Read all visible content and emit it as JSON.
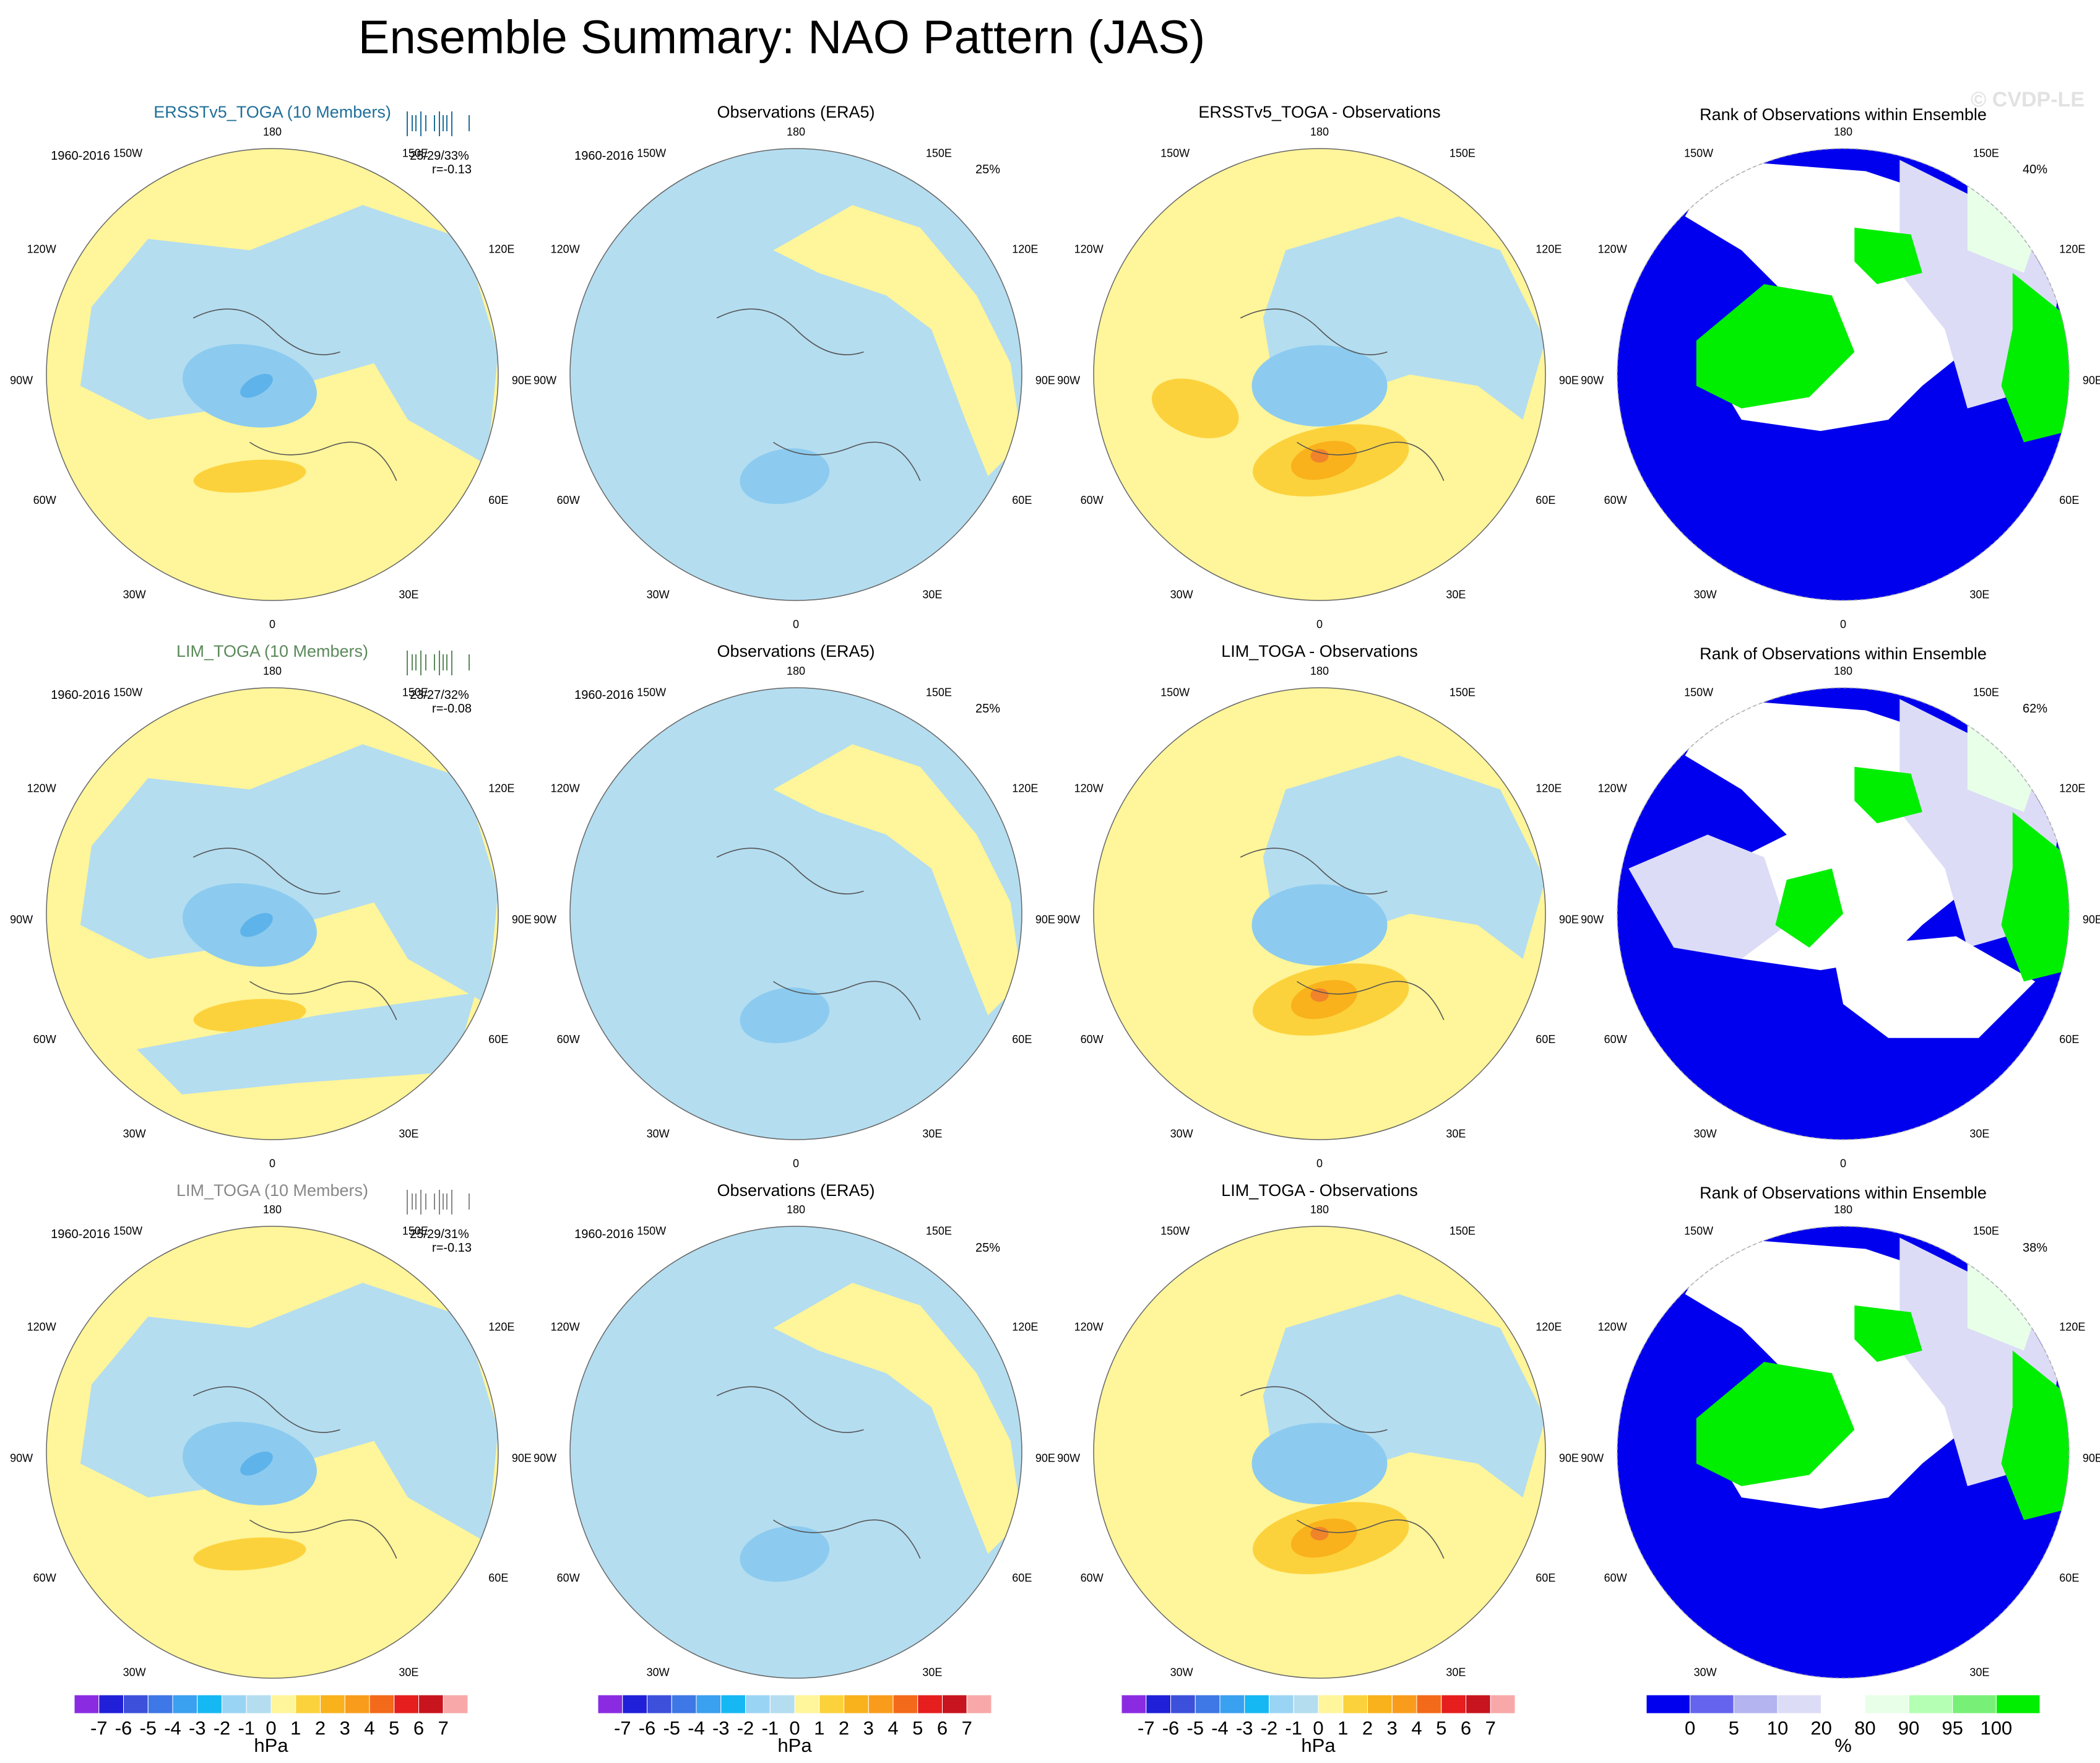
{
  "title": "Ensemble Summary: NAO Pattern (JAS)",
  "watermark": "© CVDP-LE",
  "colors": {
    "yellow": "#fff59a",
    "lightblue": "#b4ddf0",
    "blue2": "#8ccbef",
    "blue3": "#5eb3ea",
    "orange1": "#fcd23c",
    "orange2": "#f9b21c",
    "red1": "#f1832a",
    "rankBlue": "#0000ee",
    "rankLav": "#dcdcf6",
    "rankMint": "#e8ffe8",
    "rankGreen": "#00ee00",
    "coast": "#555555",
    "ensTitle1": "#1f6f99",
    "ensTitle2": "#5a8a5a",
    "ensTitle3": "#888888"
  },
  "axis_labels": {
    "n": "180",
    "s": "0",
    "w1": "150W",
    "w2": "120W",
    "w3": "90W",
    "w4": "60W",
    "w5": "30W",
    "e1": "150E",
    "e2": "120E",
    "e3": "90E",
    "e4": "60E",
    "e5": "30E"
  },
  "rows": [
    {
      "ensemble_title": "ERSSTv5_TOGA (10 Members)",
      "period": "1960-2016",
      "stats": "25/29/33%",
      "r": "r=-0.13",
      "obs_title": "Observations (ERA5)",
      "obs_period": "1960-2016",
      "obs_pct": "25%",
      "diff_title": "ERSSTv5_TOGA - Observations",
      "rank_title": "Rank of Observations within Ensemble",
      "rank_pct": "40%"
    },
    {
      "ensemble_title": "LIM_TOGA (10 Members)",
      "period": "1960-2016",
      "stats": "23/27/32%",
      "r": "r=-0.08",
      "obs_title": "Observations (ERA5)",
      "obs_period": "1960-2016",
      "obs_pct": "25%",
      "diff_title": "LIM_TOGA - Observations",
      "rank_title": "Rank of Observations within Ensemble",
      "rank_pct": "62%"
    },
    {
      "ensemble_title": "LIM_TOGA (10 Members)",
      "period": "1960-2016",
      "stats": "25/29/31%",
      "r": "r=-0.13",
      "obs_title": "Observations (ERA5)",
      "obs_period": "1960-2016",
      "obs_pct": "25%",
      "diff_title": "LIM_TOGA - Observations",
      "rank_title": "Rank of Observations within Ensemble",
      "rank_pct": "38%"
    }
  ],
  "colorbar": {
    "unit": "hPa",
    "labels": [
      "-7",
      "-6",
      "-5",
      "-4",
      "-3",
      "-2",
      "-1",
      "0",
      "1",
      "2",
      "3",
      "4",
      "5",
      "6",
      "7"
    ],
    "colors": [
      "#8a2be2",
      "#2020d8",
      "#3c50dc",
      "#3e78e6",
      "#3aa0f0",
      "#16b8f4",
      "#9ad4f4",
      "#b4ddf0",
      "#fff59a",
      "#fcd23c",
      "#f9b21c",
      "#f99c1c",
      "#f26a1a",
      "#e61e1e",
      "#c8141e",
      "#f8a8a8"
    ]
  },
  "rank_colorbar": {
    "unit": "%",
    "labels": [
      "0",
      "5",
      "10",
      "20",
      "80",
      "90",
      "95",
      "100"
    ],
    "colors": [
      "#0000ee",
      "#6464ee",
      "#b4b4f0",
      "#dcdcf6",
      "#ffffff",
      "#e8ffe8",
      "#b4ffb4",
      "#78f078",
      "#00ee00"
    ]
  },
  "chart_data": {
    "type": "heatmap",
    "title": "Ensemble Summary: NAO Pattern (JAS)",
    "projection": "north polar stereographic",
    "longitude_labels": [
      "180",
      "150E",
      "120E",
      "90E",
      "60E",
      "30E",
      "0",
      "30W",
      "60W",
      "90W",
      "120W",
      "150W"
    ],
    "rows": [
      {
        "ensemble": "ERSSTv5_TOGA (10 Members)",
        "pct_stats": "25/29/33%",
        "pattern_correlation": -0.13,
        "obs_pct_variance": 25,
        "rank_pct": 40
      },
      {
        "ensemble": "LIM_TOGA (10 Members)",
        "pct_stats": "23/27/32%",
        "pattern_correlation": -0.08,
        "obs_pct_variance": 25,
        "rank_pct": 62
      },
      {
        "ensemble": "LIM_TOGA (10 Members)",
        "pct_stats": "25/29/31%",
        "pattern_correlation": -0.13,
        "obs_pct_variance": 25,
        "rank_pct": 38
      }
    ],
    "anomaly_levels_hPa": [
      -7,
      -6,
      -5,
      -4,
      -3,
      -2,
      -1,
      0,
      1,
      2,
      3,
      4,
      5,
      6,
      7
    ],
    "rank_levels_pct": [
      0,
      5,
      10,
      20,
      80,
      90,
      95,
      100
    ]
  }
}
